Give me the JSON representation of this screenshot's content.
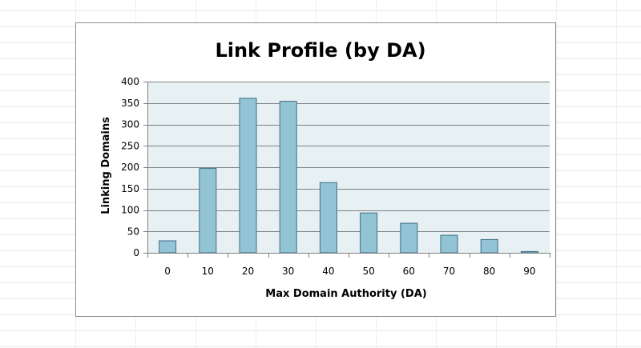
{
  "chart_data": {
    "type": "bar",
    "title": "Link Profile (by DA)",
    "xlabel": "Max Domain Authority (DA)",
    "ylabel": "Linking Domains",
    "categories": [
      "0",
      "10",
      "20",
      "30",
      "40",
      "50",
      "60",
      "70",
      "80",
      "90"
    ],
    "values": [
      28,
      197,
      361,
      354,
      164,
      93,
      69,
      41,
      31,
      3
    ],
    "ylim": [
      0,
      400
    ],
    "yticks": [
      "0",
      "50",
      "100",
      "150",
      "200",
      "250",
      "300",
      "350",
      "400"
    ],
    "grid": true,
    "legend": "none",
    "colors": {
      "bar_fill": "#92c4d5",
      "bar_stroke": "#3c6d84",
      "plot_background": "#e7f0f3",
      "gridline": "#828282"
    }
  }
}
